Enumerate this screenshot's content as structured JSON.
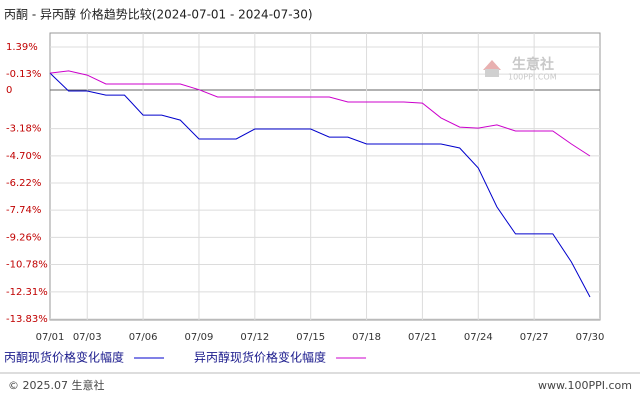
{
  "chart_data": {
    "type": "line",
    "title": "丙酮 - 异丙醇 价格趋势比较(2024-07-01 - 2024-07-30)",
    "categories": [
      "07/01",
      null,
      "07/03",
      null,
      null,
      "07/06",
      null,
      null,
      "07/09",
      null,
      null,
      "07/12",
      null,
      null,
      "07/15",
      null,
      null,
      "07/18",
      null,
      null,
      "07/21",
      null,
      null,
      "07/24",
      null,
      null,
      "07/27",
      null,
      null,
      "07/30"
    ],
    "series": [
      {
        "name": "丙酮现货价格变化幅度",
        "color": "#0000cc",
        "values": [
          -0.07,
          -1.07,
          -1.07,
          -1.3,
          -1.3,
          -2.42,
          -2.42,
          -2.7,
          -3.76,
          -3.76,
          -3.76,
          -3.2,
          -3.2,
          -3.2,
          -3.2,
          -3.65,
          -3.65,
          -4.04,
          -4.04,
          -4.04,
          -4.04,
          -4.04,
          -4.26,
          -5.38,
          -7.56,
          -9.07,
          -9.07,
          -9.07,
          -10.64,
          -12.6
        ]
      },
      {
        "name": "异丙醇现货价格变化幅度",
        "color": "#cc00cc",
        "values": [
          -0.07,
          0.05,
          -0.18,
          -0.68,
          -0.68,
          -0.68,
          -0.68,
          -0.68,
          -1.0,
          -1.41,
          -1.41,
          -1.41,
          -1.41,
          -1.41,
          -1.41,
          -1.41,
          -1.69,
          -1.69,
          -1.69,
          -1.69,
          -1.75,
          -2.58,
          -3.09,
          -3.15,
          -2.97,
          -3.31,
          -3.31,
          -3.31,
          -4.04,
          -4.71
        ]
      }
    ],
    "ylim": [
      -13.83,
      1.39
    ],
    "yticks": [
      {
        "value": 1.39,
        "label": "1.39%"
      },
      {
        "value": -0.13,
        "label": "-0.13%"
      },
      {
        "value": -3.18,
        "label": "-3.18%"
      },
      {
        "value": -4.7,
        "label": "-4.70%"
      },
      {
        "value": -6.22,
        "label": "-6.22%"
      },
      {
        "value": -7.74,
        "label": "-7.74%"
      },
      {
        "value": -9.26,
        "label": "-9.26%"
      },
      {
        "value": -10.78,
        "label": "-10.78%"
      },
      {
        "value": -12.31,
        "label": "-12.31%"
      },
      {
        "value": -13.83,
        "label": "-13.83%"
      }
    ],
    "baseline_label": "0",
    "grid": true,
    "watermark": {
      "name": "生意社",
      "site": "100PPI.COM"
    },
    "footer": {
      "left": "© 2025.07 生意社",
      "right": "www.100PPI.com"
    }
  }
}
